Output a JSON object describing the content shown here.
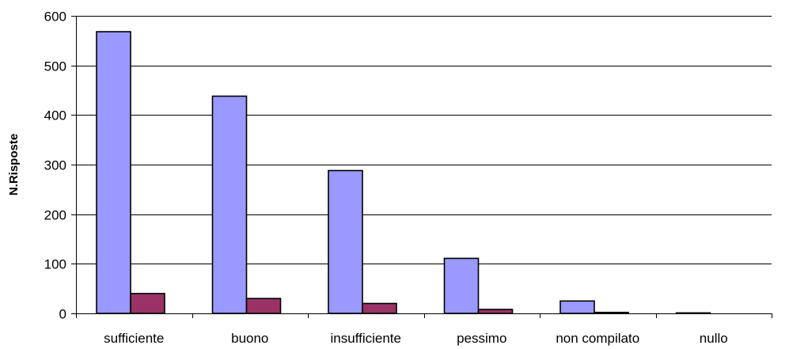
{
  "chart_data": {
    "type": "bar",
    "title": "",
    "xlabel": "",
    "ylabel": "N.Risposte",
    "categories": [
      "sufficiente",
      "buono",
      "insufficiente",
      "pessimo",
      "non compilato",
      "nullo"
    ],
    "series": [
      {
        "values": [
          568,
          438,
          288,
          111,
          25,
          1
        ]
      },
      {
        "values": [
          40,
          30,
          20,
          8,
          2,
          0
        ]
      }
    ],
    "ylim": [
      0,
      600
    ],
    "yticks": [
      "0",
      "100",
      "200",
      "300",
      "400",
      "500",
      "600"
    ],
    "grid": true,
    "legend": "none",
    "colors": [
      "#9999ff",
      "#993366"
    ]
  }
}
